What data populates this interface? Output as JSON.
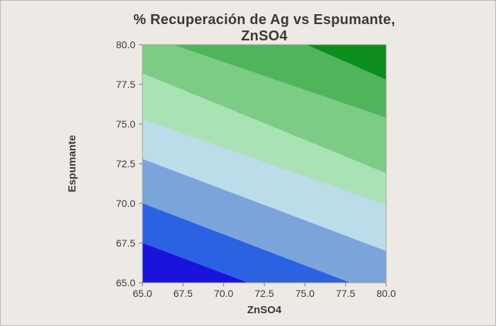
{
  "window": {
    "background": "#EDE9E4",
    "border_color": "#B9B6B0",
    "text_color": "#3B3A36",
    "frame_color": "#A9A69F",
    "tick_color": "#7A7772"
  },
  "chart_data": {
    "type": "contour",
    "title": "% Recuperación de Ag vs Espumante, ZnSO4",
    "xlabel": "ZnSO4",
    "ylabel": "Espumante",
    "xlim": [
      65,
      80
    ],
    "ylim": [
      65,
      80
    ],
    "xtick_labels": [
      "65.0",
      "67.5",
      "70.0",
      "72.5",
      "75.0",
      "77.5",
      "80.0"
    ],
    "ytick_labels": [
      "65.0",
      "67.5",
      "70.0",
      "72.5",
      "75.0",
      "77.5",
      "80.0"
    ],
    "grid": false,
    "legend": false,
    "band_colors_low_to_high": [
      "#1913DC",
      "#2A62E1",
      "#7BA5DA",
      "#BDDCE9",
      "#A9E3B5",
      "#7DCC86",
      "#4FB45C",
      "#0E8D1F"
    ],
    "band_boundaries": [
      {
        "p1": [
          65.0,
          67.5
        ],
        "p2": [
          71.5,
          65.0
        ]
      },
      {
        "p1": [
          65.0,
          70.0
        ],
        "p2": [
          77.8,
          65.0
        ]
      },
      {
        "p1": [
          65.0,
          72.8
        ],
        "p2": [
          80.0,
          67.0
        ]
      },
      {
        "p1": [
          65.0,
          75.3
        ],
        "p2": [
          80.0,
          69.9
        ]
      },
      {
        "p1": [
          65.0,
          78.2
        ],
        "p2": [
          80.0,
          71.9
        ]
      },
      {
        "p1": [
          66.9,
          80.0
        ],
        "p2": [
          80.0,
          75.4
        ]
      },
      {
        "p1": [
          75.1,
          80.0
        ],
        "p2": [
          80.0,
          77.8
        ]
      }
    ]
  }
}
